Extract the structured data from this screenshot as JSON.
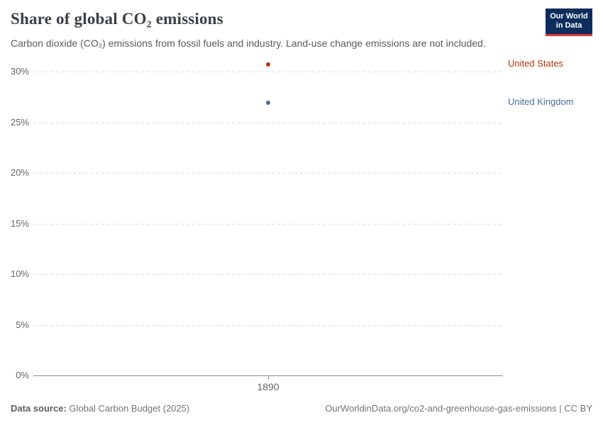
{
  "header": {
    "title": "Share of global CO₂ emissions",
    "subtitle": "Carbon dioxide (CO₂) emissions from fossil fuels and industry. Land-use change emissions are not included.",
    "logo": {
      "line1": "Our World",
      "line2": "in Data",
      "bg_color": "#0d2e5c",
      "accent_color": "#e0362d"
    }
  },
  "chart_data": {
    "type": "scatter",
    "x": [
      1890
    ],
    "series": [
      {
        "name": "United States",
        "values": [
          30.7
        ],
        "color": "#b13507"
      },
      {
        "name": "United Kingdom",
        "values": [
          26.9
        ],
        "color": "#4c6a9c"
      }
    ],
    "title": "Share of global CO₂ emissions",
    "xlabel": "",
    "ylabel": "",
    "ylim": [
      0,
      30
    ],
    "yticks": [
      0,
      5,
      10,
      15,
      20,
      25,
      30
    ],
    "ytick_suffix": "%",
    "xticks": [
      "1890"
    ],
    "grid": "horizontal-dashed",
    "legend_position": "right-of-plot",
    "colors": {
      "gridline": "#dcdcdc",
      "axis": "#8f8f8f",
      "tick_label": "#666666"
    }
  },
  "footer": {
    "source_label": "Data source:",
    "source_value": " Global Carbon Budget (2025)",
    "citation": "OurWorldinData.org/co2-and-greenhouse-gas-emissions | CC BY"
  }
}
